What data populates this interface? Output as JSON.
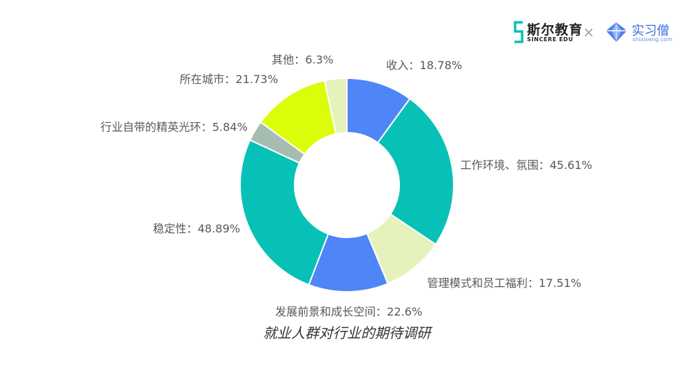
{
  "branding": {
    "left_cn": "斯尔教育",
    "left_en": "SINCERE EDU",
    "separator": "×",
    "right_cn": "实习僧",
    "right_en": "shixiseng.com"
  },
  "chart_data": {
    "type": "pie",
    "donut": true,
    "title": "就业人群对行业的期待调研",
    "categories": [
      "收入",
      "工作环境、氛围",
      "管理模式和员工福利",
      "发展前景和成长空间",
      "稳定性",
      "行业自带的精英光环",
      "所在城市",
      "其他"
    ],
    "values": [
      18.78,
      45.61,
      17.51,
      22.6,
      48.89,
      5.84,
      21.73,
      6.3
    ],
    "value_labels": [
      "18.78%",
      "45.61%",
      "17.51%",
      "22.6%",
      "48.89%",
      "5.84%",
      "21.73%",
      "6.3%"
    ],
    "colors": [
      "#4e86f7",
      "#07c1b6",
      "#e5f2bb",
      "#4e86f7",
      "#07c1b6",
      "#a6bcb1",
      "#dbfd09",
      "#e5f2bb"
    ],
    "separator": "："
  }
}
